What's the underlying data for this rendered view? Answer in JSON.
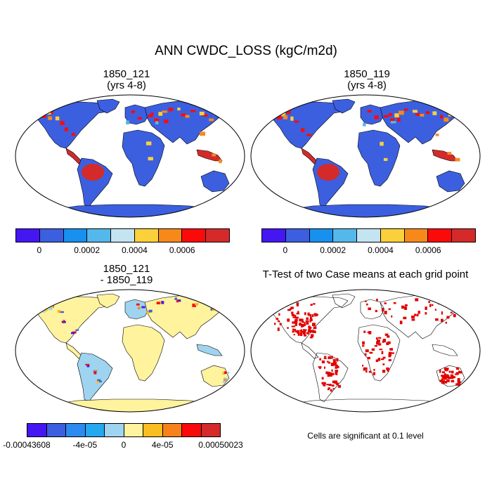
{
  "figure": {
    "title": "ANN CWDC_LOSS (kgC/m2d)",
    "panels": [
      {
        "id": "p1",
        "title_line1": "1850_121",
        "title_line2": "(yrs 4-8)",
        "style": "abs"
      },
      {
        "id": "p2",
        "title_line1": "1850_119",
        "title_line2": "(yrs 4-8)",
        "style": "abs"
      },
      {
        "id": "p3",
        "title_line1": "1850_121",
        "title_line2": "- 1850_119",
        "style": "diff"
      },
      {
        "id": "p4",
        "title_line1": "T-Test of two Case means at each grid point",
        "title_line2": "",
        "style": "ttest"
      }
    ],
    "colorbar_abs": {
      "colors": [
        "#4416f2",
        "#3c5fe0",
        "#1890ee",
        "#54b8ea",
        "#c4e4f2",
        "#fad13a",
        "#f7891b",
        "#fb0a0a",
        "#d42a2a"
      ],
      "labels": [
        "0",
        "0.0002",
        "0.0004",
        "0.0006"
      ]
    },
    "colorbar_diff": {
      "colors": [
        "#4416f2",
        "#3c5fe0",
        "#2c8af0",
        "#24a8f0",
        "#9ed4f0",
        "#fff39e",
        "#fabd22",
        "#f7811b",
        "#f90a0a",
        "#d42a2a"
      ],
      "labels": [
        "-0.00043608",
        "-4e-05",
        "0",
        "4e-05",
        "0.00050023"
      ]
    },
    "ttest_note": "Cells are significant at 0.1 level"
  }
}
